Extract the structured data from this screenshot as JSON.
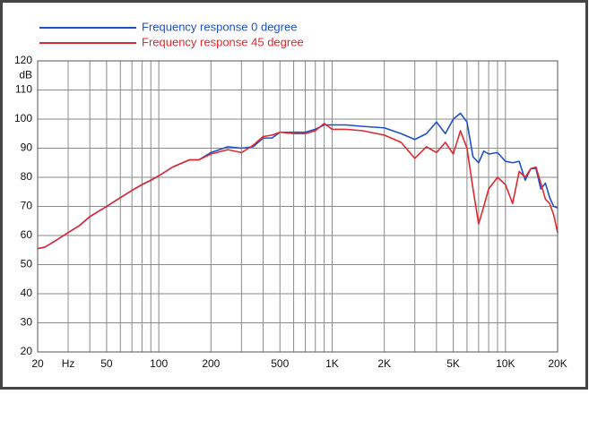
{
  "chart_data": {
    "type": "line",
    "xscale": "log",
    "y_label": "dB",
    "legend": "top-left",
    "xlim": [
      20,
      20000
    ],
    "ylim": [
      20,
      120
    ],
    "yticks": [
      20,
      30,
      40,
      50,
      60,
      70,
      80,
      90,
      100,
      110,
      120
    ],
    "xticks": [
      20,
      {
        "value": 30,
        "label": "Hz"
      },
      50,
      100,
      200,
      500,
      {
        "value": 1000,
        "label": "1K"
      },
      {
        "value": 2000,
        "label": "2K"
      },
      {
        "value": 5000,
        "label": "5K"
      },
      {
        "value": 10000,
        "label": "10K"
      },
      {
        "value": 20000,
        "label": "20K"
      }
    ],
    "xgrid": [
      30,
      40,
      50,
      60,
      70,
      80,
      90,
      100,
      200,
      300,
      400,
      500,
      600,
      700,
      800,
      900,
      1000,
      2000,
      3000,
      4000,
      5000,
      6000,
      7000,
      8000,
      9000,
      10000
    ],
    "grid": true,
    "x": [
      20,
      22,
      25,
      30,
      35,
      40,
      50,
      60,
      70,
      80,
      90,
      100,
      120,
      150,
      170,
      200,
      250,
      300,
      350,
      400,
      450,
      500,
      600,
      700,
      800,
      900,
      1000,
      1200,
      1500,
      2000,
      2500,
      3000,
      3500,
      4000,
      4500,
      5000,
      5500,
      6000,
      6500,
      7000,
      7500,
      8000,
      9000,
      10000,
      11000,
      12000,
      13000,
      14000,
      15000,
      16000,
      17000,
      18000,
      19000,
      20000
    ],
    "series": [
      {
        "name": "Frequency response 0 degree",
        "color": "#1f4fc8",
        "values": [
          55.5,
          56,
          58,
          61,
          63.5,
          66.5,
          70,
          73,
          75.5,
          77.5,
          79,
          80.5,
          83.5,
          86,
          86,
          88.5,
          90.5,
          90,
          90.5,
          93.5,
          93.5,
          95.5,
          95.5,
          95.5,
          96.5,
          98,
          98,
          98,
          97.5,
          97,
          95,
          93,
          95,
          99,
          95,
          100,
          102,
          99,
          87,
          85,
          89,
          88,
          88.5,
          85.5,
          85,
          85.5,
          79,
          83,
          83,
          76,
          78,
          73,
          70,
          69.5
        ]
      },
      {
        "name": "Frequency response 45 degree",
        "color": "#e0282e",
        "values": [
          55.5,
          56,
          58,
          61,
          63.5,
          66.5,
          70,
          73,
          75.5,
          77.5,
          79,
          80.5,
          83.5,
          86,
          86,
          88,
          89.5,
          88.5,
          91,
          94,
          94.5,
          95.5,
          95,
          95,
          96,
          98.5,
          96.5,
          96.5,
          96,
          94.5,
          92,
          86.5,
          90.5,
          88.5,
          92,
          88,
          96,
          90,
          76,
          64,
          70,
          76,
          80,
          77.5,
          71,
          82,
          80,
          83,
          83.5,
          78,
          72.5,
          71,
          67,
          61
        ]
      }
    ]
  }
}
